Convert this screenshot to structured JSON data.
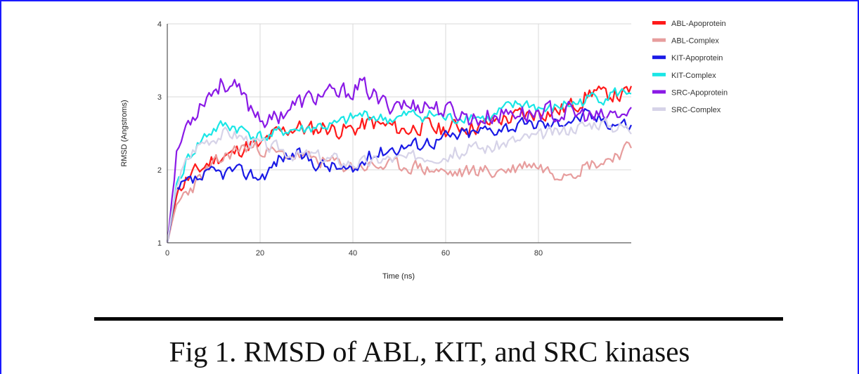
{
  "figure": {
    "caption": "Fig 1. RMSD of ABL, KIT, and SRC kinases"
  },
  "chart_data": {
    "type": "line",
    "title": "",
    "xlabel": "Time (ns)",
    "ylabel": "RMSD (Angstroms)",
    "xlim": [
      0,
      100
    ],
    "ylim": [
      1,
      4
    ],
    "xticks": [
      0,
      20,
      40,
      60,
      80
    ],
    "yticks": [
      1,
      2,
      3,
      4
    ],
    "grid": true,
    "legend_position": "right",
    "sampling_interval_ns": 0.5,
    "series": [
      {
        "name": "ABL-Apoprotein",
        "color": "#ff1a1a",
        "x": [
          0,
          2,
          4,
          6,
          8,
          10,
          12,
          14,
          16,
          18,
          20,
          22,
          24,
          26,
          28,
          30,
          32,
          34,
          36,
          38,
          40,
          42,
          44,
          46,
          48,
          50,
          52,
          54,
          56,
          58,
          60,
          62,
          64,
          66,
          68,
          70,
          72,
          74,
          76,
          78,
          80,
          82,
          84,
          86,
          88,
          90,
          92,
          94,
          96,
          98,
          100
        ],
        "y": [
          1.0,
          1.7,
          1.85,
          1.95,
          2.05,
          2.15,
          2.2,
          2.2,
          2.3,
          2.35,
          2.3,
          2.45,
          2.5,
          2.55,
          2.6,
          2.55,
          2.55,
          2.6,
          2.55,
          2.55,
          2.55,
          2.6,
          2.65,
          2.6,
          2.6,
          2.55,
          2.55,
          2.6,
          2.6,
          2.55,
          2.55,
          2.6,
          2.6,
          2.6,
          2.6,
          2.65,
          2.7,
          2.7,
          2.75,
          2.75,
          2.8,
          2.8,
          2.8,
          2.85,
          2.9,
          3.0,
          3.1,
          3.0,
          3.05,
          3.0,
          3.1
        ],
        "amp": 0.17,
        "seed": 11
      },
      {
        "name": "ABL-Complex",
        "color": "#e79d9d",
        "x": [
          0,
          2,
          4,
          6,
          8,
          10,
          12,
          14,
          16,
          18,
          20,
          22,
          24,
          26,
          28,
          30,
          32,
          34,
          36,
          38,
          40,
          42,
          44,
          46,
          48,
          50,
          52,
          54,
          56,
          58,
          60,
          62,
          64,
          66,
          68,
          70,
          72,
          74,
          76,
          78,
          80,
          82,
          84,
          86,
          88,
          90,
          92,
          94,
          96,
          98,
          100
        ],
        "y": [
          1.0,
          1.5,
          1.7,
          1.8,
          1.95,
          2.05,
          2.15,
          2.25,
          2.3,
          2.3,
          2.3,
          2.25,
          2.2,
          2.2,
          2.2,
          2.15,
          2.15,
          2.1,
          2.1,
          2.05,
          2.05,
          2.05,
          2.05,
          2.05,
          2.05,
          2.05,
          2.05,
          2.05,
          2.0,
          2.0,
          1.95,
          1.95,
          1.95,
          2.0,
          2.0,
          1.95,
          2.0,
          2.0,
          2.05,
          2.1,
          2.05,
          2.0,
          1.95,
          2.0,
          2.0,
          2.05,
          2.1,
          2.1,
          2.2,
          2.25,
          2.3
        ],
        "amp": 0.14,
        "seed": 23
      },
      {
        "name": "KIT-Apoprotein",
        "color": "#1a1ae6",
        "x": [
          0,
          2,
          4,
          6,
          8,
          10,
          12,
          14,
          16,
          18,
          20,
          22,
          24,
          26,
          28,
          30,
          32,
          34,
          36,
          38,
          40,
          42,
          44,
          46,
          48,
          50,
          52,
          54,
          56,
          58,
          60,
          62,
          64,
          66,
          68,
          70,
          72,
          74,
          76,
          78,
          80,
          82,
          84,
          86,
          88,
          90,
          92,
          94,
          96,
          98,
          100
        ],
        "y": [
          1.0,
          1.7,
          1.8,
          1.85,
          1.9,
          1.95,
          1.95,
          2.0,
          1.95,
          1.95,
          1.9,
          2.0,
          2.15,
          2.2,
          2.2,
          2.15,
          2.1,
          2.05,
          2.05,
          2.0,
          1.95,
          2.1,
          2.2,
          2.25,
          2.3,
          2.3,
          2.35,
          2.35,
          2.4,
          2.4,
          2.45,
          2.45,
          2.5,
          2.5,
          2.55,
          2.55,
          2.6,
          2.6,
          2.6,
          2.6,
          2.65,
          2.6,
          2.65,
          2.7,
          2.7,
          2.75,
          2.7,
          2.7,
          2.65,
          2.65,
          2.6
        ],
        "amp": 0.14,
        "seed": 37
      },
      {
        "name": "KIT-Complex",
        "color": "#1ae6e6",
        "x": [
          0,
          2,
          4,
          6,
          8,
          10,
          12,
          14,
          16,
          18,
          20,
          22,
          24,
          26,
          28,
          30,
          32,
          34,
          36,
          38,
          40,
          42,
          44,
          46,
          48,
          50,
          52,
          54,
          56,
          58,
          60,
          62,
          64,
          66,
          68,
          70,
          72,
          74,
          76,
          78,
          80,
          82,
          84,
          86,
          88,
          90,
          92,
          94,
          96,
          98,
          100
        ],
        "y": [
          1.0,
          1.8,
          2.1,
          2.3,
          2.45,
          2.55,
          2.6,
          2.6,
          2.55,
          2.5,
          2.45,
          2.45,
          2.5,
          2.55,
          2.55,
          2.55,
          2.6,
          2.6,
          2.6,
          2.65,
          2.7,
          2.75,
          2.75,
          2.7,
          2.7,
          2.7,
          2.75,
          2.75,
          2.75,
          2.75,
          2.7,
          2.7,
          2.75,
          2.75,
          2.7,
          2.7,
          2.8,
          2.85,
          2.9,
          2.9,
          2.85,
          2.8,
          2.85,
          2.9,
          2.9,
          2.95,
          3.0,
          3.0,
          3.05,
          3.05,
          3.1
        ],
        "amp": 0.13,
        "seed": 41
      },
      {
        "name": "SRC-Apoprotein",
        "color": "#8a1ae6",
        "x": [
          0,
          2,
          4,
          6,
          8,
          10,
          12,
          14,
          16,
          18,
          20,
          22,
          24,
          26,
          28,
          30,
          32,
          34,
          36,
          38,
          40,
          42,
          44,
          46,
          48,
          50,
          52,
          54,
          56,
          58,
          60,
          62,
          64,
          66,
          68,
          70,
          72,
          74,
          76,
          78,
          80,
          82,
          84,
          86,
          88,
          90,
          92,
          94,
          96,
          98,
          100
        ],
        "y": [
          1.0,
          2.2,
          2.6,
          2.8,
          3.0,
          3.1,
          3.2,
          3.15,
          3.0,
          2.85,
          2.75,
          2.65,
          2.75,
          2.85,
          2.9,
          2.95,
          3.0,
          3.05,
          3.0,
          3.05,
          3.1,
          3.15,
          3.05,
          2.9,
          2.9,
          2.95,
          2.85,
          2.9,
          2.9,
          2.85,
          2.8,
          2.8,
          2.75,
          2.7,
          2.7,
          2.75,
          2.75,
          2.8,
          2.8,
          2.75,
          2.8,
          2.8,
          2.75,
          2.8,
          2.75,
          2.75,
          2.7,
          2.7,
          2.75,
          2.75,
          2.75
        ],
        "amp": 0.19,
        "seed": 53
      },
      {
        "name": "SRC-Complex",
        "color": "#d6d3e8",
        "x": [
          0,
          2,
          4,
          6,
          8,
          10,
          12,
          14,
          16,
          18,
          20,
          22,
          24,
          26,
          28,
          30,
          32,
          34,
          36,
          38,
          40,
          42,
          44,
          46,
          48,
          50,
          52,
          54,
          56,
          58,
          60,
          62,
          64,
          66,
          68,
          70,
          72,
          74,
          76,
          78,
          80,
          82,
          84,
          86,
          88,
          90,
          92,
          94,
          96,
          98,
          100
        ],
        "y": [
          1.0,
          1.8,
          2.1,
          2.3,
          2.4,
          2.45,
          2.5,
          2.5,
          2.45,
          2.4,
          2.35,
          2.3,
          2.3,
          2.25,
          2.2,
          2.2,
          2.2,
          2.15,
          2.15,
          2.1,
          2.1,
          2.1,
          2.1,
          2.15,
          2.15,
          2.15,
          2.15,
          2.2,
          2.2,
          2.2,
          2.2,
          2.25,
          2.25,
          2.3,
          2.3,
          2.3,
          2.35,
          2.4,
          2.4,
          2.45,
          2.45,
          2.5,
          2.5,
          2.55,
          2.6,
          2.6,
          2.65,
          2.65,
          2.6,
          2.6,
          2.55
        ],
        "amp": 0.13,
        "seed": 67
      }
    ]
  }
}
